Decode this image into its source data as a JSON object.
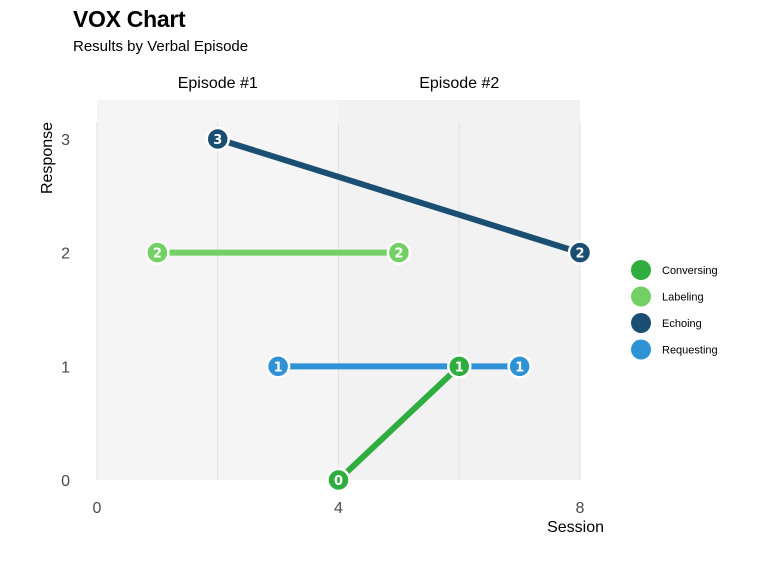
{
  "header": {
    "title": "VOX Chart",
    "subtitle": "Results by Verbal Episode"
  },
  "chart_data": {
    "type": "line",
    "title": "VOX Chart",
    "subtitle": "Results by Verbal Episode",
    "xlabel": "Session",
    "ylabel": "Response",
    "xlim": [
      0,
      8
    ],
    "ylim": [
      0,
      3
    ],
    "x_ticks": [
      "0",
      "4",
      "8"
    ],
    "y_ticks": [
      "0",
      "1",
      "2",
      "3"
    ],
    "grid": true,
    "legend_position": "right",
    "episodes": [
      {
        "label": "Episode #1",
        "x_range": [
          0,
          4
        ],
        "shade": "#f5f5f5"
      },
      {
        "label": "Episode #2",
        "x_range": [
          4,
          8
        ],
        "shade": "#f2f2f2"
      }
    ],
    "series": [
      {
        "name": "Conversing",
        "color": "#2fad3f",
        "points": [
          {
            "x": 4,
            "y": 0,
            "label": "0"
          },
          {
            "x": 6,
            "y": 1,
            "label": "1"
          }
        ]
      },
      {
        "name": "Labeling",
        "color": "#72d064",
        "points": [
          {
            "x": 1,
            "y": 2,
            "label": "2"
          },
          {
            "x": 5,
            "y": 2,
            "label": "2"
          }
        ]
      },
      {
        "name": "Echoing",
        "color": "#1a4f73",
        "points": [
          {
            "x": 2,
            "y": 3,
            "label": "3"
          },
          {
            "x": 8,
            "y": 2,
            "label": "2"
          }
        ]
      },
      {
        "name": "Requesting",
        "color": "#2f92d4",
        "points": [
          {
            "x": 3,
            "y": 1,
            "label": "1"
          },
          {
            "x": 7,
            "y": 1,
            "label": "1"
          }
        ]
      }
    ],
    "draw_order": [
      "Labeling",
      "Echoing",
      "Requesting",
      "Conversing"
    ]
  }
}
